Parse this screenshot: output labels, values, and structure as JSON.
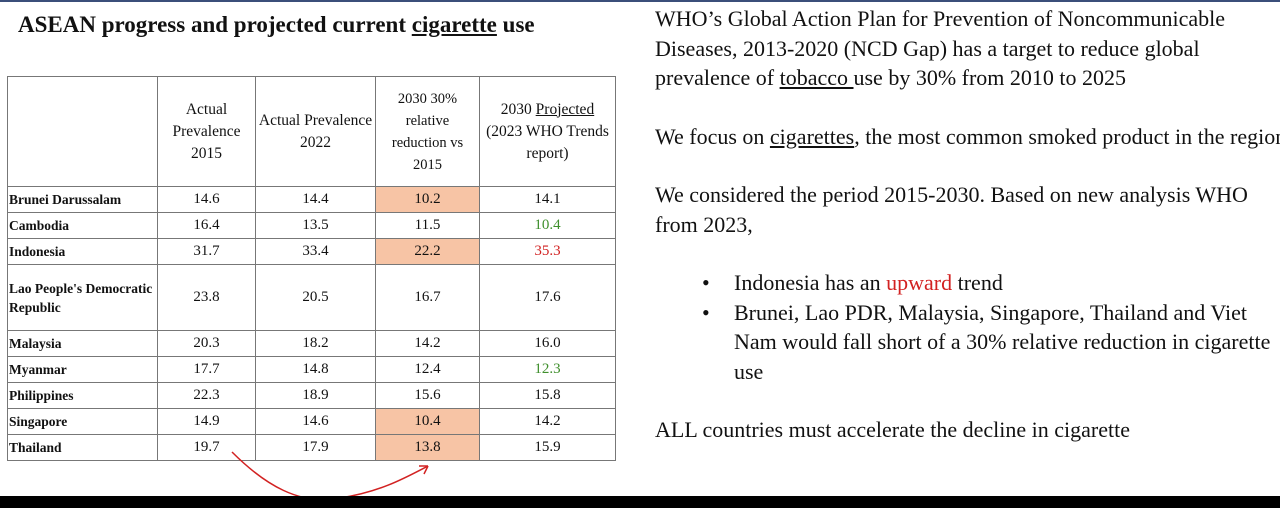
{
  "title": {
    "prefix": "ASEAN progress and projected current ",
    "underlined": "cigarette",
    "suffix": " use"
  },
  "table": {
    "headers": [
      "",
      "Actual Prevalence 2015",
      "Actual Prevalence 2022",
      "2030 30% relative reduction vs 2015",
      {
        "prefix": "2030 ",
        "underlined": "Projected",
        "suffix": " (2023 WHO Trends report)"
      }
    ],
    "rows": [
      {
        "country": "Brunei Darussalam",
        "v2015": "14.6",
        "v2022": "14.4",
        "target": "10.2",
        "projected": "14.1",
        "target_highlight": true,
        "projected_color": "black"
      },
      {
        "country": "Cambodia",
        "v2015": "16.4",
        "v2022": "13.5",
        "target": "11.5",
        "projected": "10.4",
        "target_highlight": false,
        "projected_color": "green"
      },
      {
        "country": "Indonesia",
        "v2015": "31.7",
        "v2022": "33.4",
        "target": "22.2",
        "projected": "35.3",
        "target_highlight": true,
        "projected_color": "red"
      },
      {
        "country": "Lao People's Democratic Republic",
        "v2015": "23.8",
        "v2022": "20.5",
        "target": "16.7",
        "projected": "17.6",
        "target_highlight": false,
        "projected_color": "black"
      },
      {
        "country": "Malaysia",
        "v2015": "20.3",
        "v2022": "18.2",
        "target": "14.2",
        "projected": "16.0",
        "target_highlight": false,
        "projected_color": "black"
      },
      {
        "country": "Myanmar",
        "v2015": "17.7",
        "v2022": "14.8",
        "target": "12.4",
        "projected": "12.3",
        "target_highlight": false,
        "projected_color": "green"
      },
      {
        "country": "Philippines",
        "v2015": "22.3",
        "v2022": "18.9",
        "target": "15.6",
        "projected": "15.8",
        "target_highlight": false,
        "projected_color": "black"
      },
      {
        "country": "Singapore",
        "v2015": "14.9",
        "v2022": "14.6",
        "target": "10.4",
        "projected": "14.2",
        "target_highlight": true,
        "projected_color": "black"
      },
      {
        "country": "Thailand",
        "v2015": "19.7",
        "v2022": "17.9",
        "target": "13.8",
        "projected": "15.9",
        "target_highlight": true,
        "projected_color": "black"
      }
    ]
  },
  "colors": {
    "highlight": "#f7c4a5",
    "green": "#3f8f2c",
    "red": "#d22222",
    "arrow": "#d22222"
  },
  "text": {
    "para1": {
      "prefix": "WHO’s Global Action Plan for Prevention of Noncommunicable Diseases, 2013-2020 (NCD Gap) has a target to reduce global prevalence of ",
      "underlined": "tobacco ",
      "suffix": "use by 30% from 2010 to 2025"
    },
    "para2": {
      "prefix": "We focus on ",
      "underlined": "cigarettes",
      "suffix": ", the most common smoked product in the region."
    },
    "para3": "We considered the period 2015-2030. Based on new analysis WHO from 2023,",
    "bullet1": {
      "prefix": "Indonesia has an ",
      "highlight": "upward",
      "suffix": " trend"
    },
    "bullet2": "Brunei, Lao PDR, Malaysia, Singapore, Thailand and Viet Nam  would fall short of a 30% relative reduction in cigarette use",
    "para4": "ALL countries must accelerate the decline in cigarette"
  }
}
